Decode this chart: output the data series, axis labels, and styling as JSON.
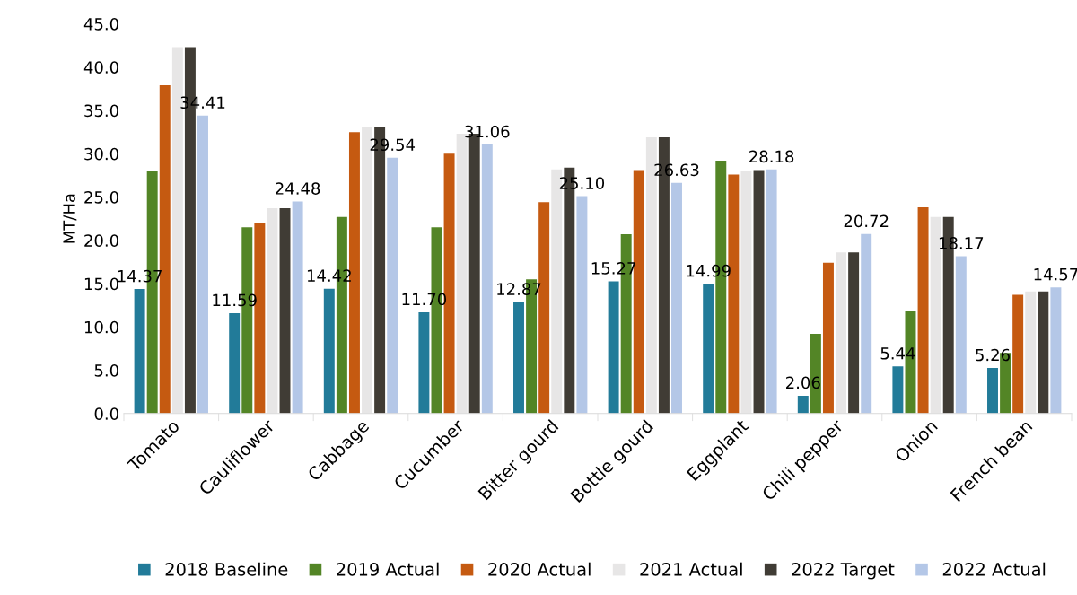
{
  "chart_data": {
    "type": "bar",
    "ylabel": "MT/Ha",
    "categories": [
      "Tomato",
      "Cauliflower",
      "Cabbage",
      "Cucumber",
      "Bitter gourd",
      "Bottle gourd",
      "Eggplant",
      "Chili pepper",
      "Onion",
      "French bean"
    ],
    "series": [
      {
        "name": "2018 Baseline",
        "color": "#227b99",
        "values": [
          14.37,
          11.59,
          14.42,
          11.7,
          12.87,
          15.27,
          14.99,
          2.06,
          5.44,
          5.26
        ],
        "value_labels": [
          "14.37",
          "11.59",
          "14.42",
          "11.70",
          "12.87",
          "15.27",
          "14.99",
          "2.06",
          "5.44",
          "5.26"
        ]
      },
      {
        "name": "2019 Actual",
        "color": "#538526",
        "values": [
          28.0,
          21.5,
          22.7,
          21.5,
          15.5,
          20.7,
          29.2,
          9.2,
          11.9,
          7.0
        ]
      },
      {
        "name": "2020 Actual",
        "color": "#c55a11",
        "values": [
          37.9,
          22.0,
          32.5,
          30.0,
          24.4,
          28.1,
          27.6,
          17.4,
          23.8,
          13.7
        ]
      },
      {
        "name": "2021 Actual",
        "color": "#e7e6e6",
        "values": [
          42.3,
          23.7,
          33.1,
          32.3,
          28.2,
          31.9,
          28.0,
          18.6,
          22.7,
          14.1
        ]
      },
      {
        "name": "2022 Target",
        "color": "#403c35",
        "values": [
          42.3,
          23.7,
          33.1,
          32.3,
          28.4,
          31.9,
          28.1,
          18.6,
          22.7,
          14.1
        ]
      },
      {
        "name": "2022 Actual",
        "color": "#b4c7e7",
        "values": [
          34.41,
          24.48,
          29.54,
          31.06,
          25.1,
          26.63,
          28.18,
          20.72,
          18.17,
          14.57
        ],
        "value_labels": [
          "34.41",
          "24.48",
          "29.54",
          "31.06",
          "25.10",
          "26.63",
          "28.18",
          "20.72",
          "18.17",
          "14.57"
        ]
      }
    ],
    "ylim": [
      0,
      45
    ],
    "yticks": [
      {
        "value": 0,
        "label": "0.0"
      },
      {
        "value": 5,
        "label": "5.0"
      },
      {
        "value": 10,
        "label": "10.0"
      },
      {
        "value": 15,
        "label": "15.0"
      },
      {
        "value": 20,
        "label": "20.0"
      },
      {
        "value": 25,
        "label": "25.0"
      },
      {
        "value": 30,
        "label": "30.0"
      },
      {
        "value": 35,
        "label": "35.0"
      },
      {
        "value": 40,
        "label": "40.0"
      },
      {
        "value": 45,
        "label": "45.0"
      }
    ],
    "grid": false,
    "legend": "bottom"
  }
}
